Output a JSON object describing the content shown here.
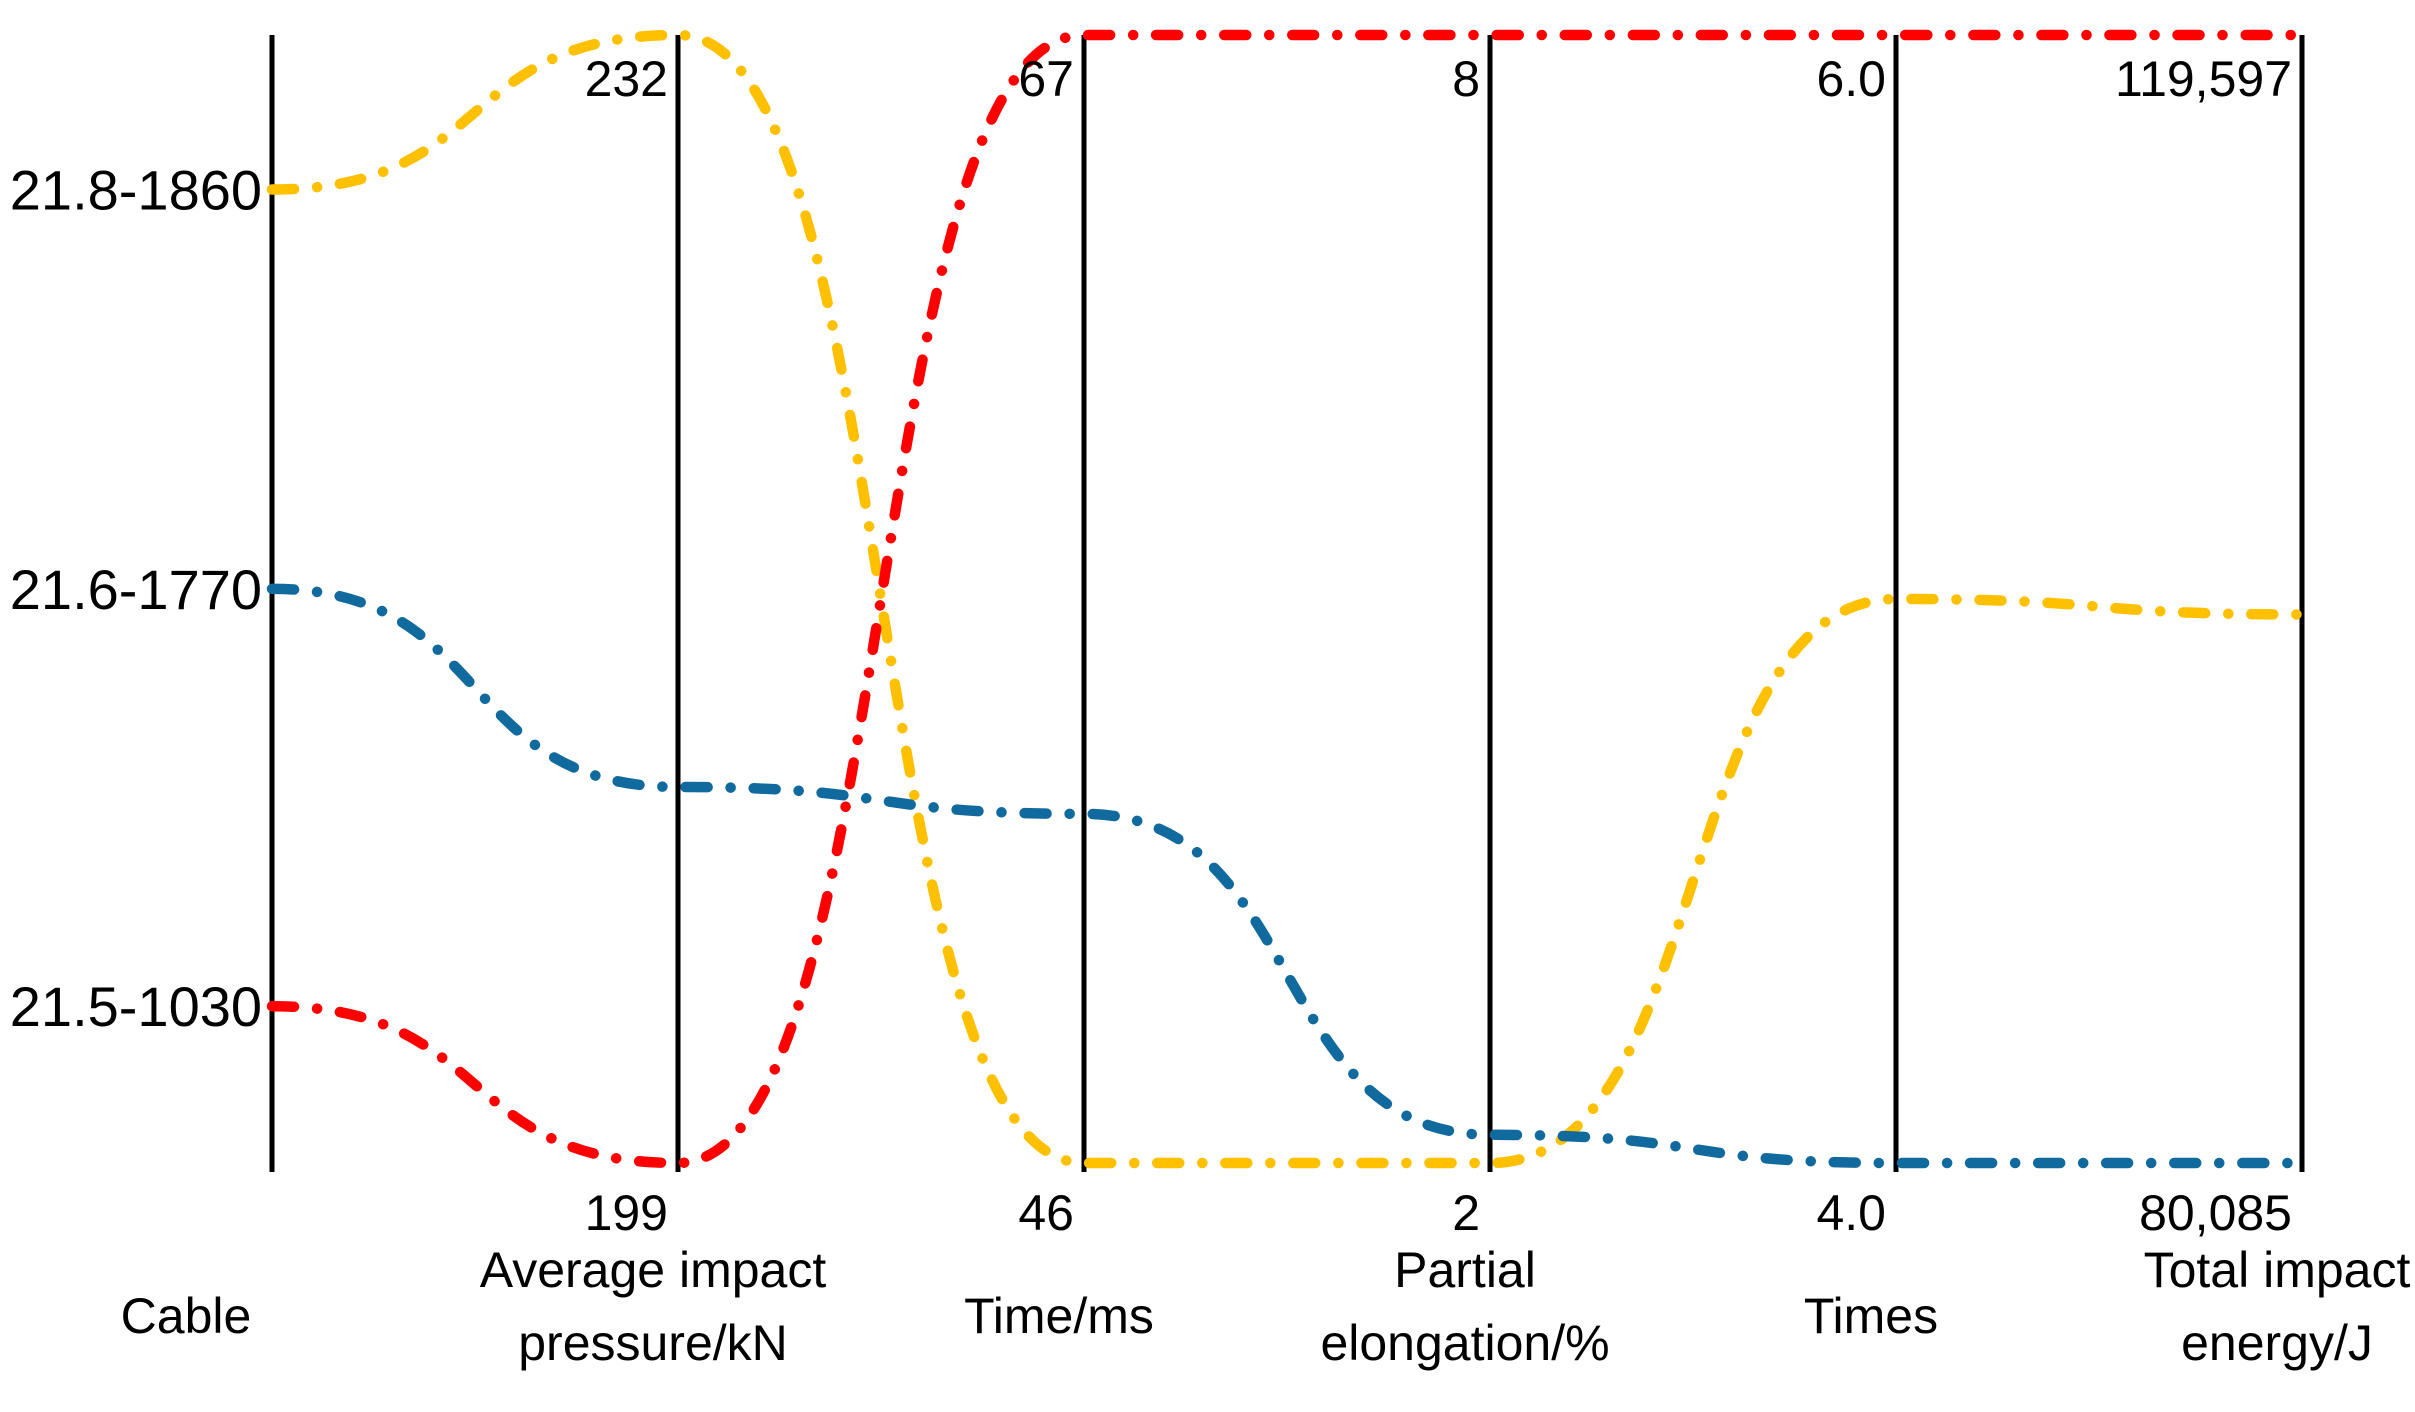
{
  "chart_data": {
    "type": "parallel-coordinates",
    "title": "",
    "line_style": "dash-dot",
    "grid": false,
    "legend_position": "none",
    "background_color": "#ffffff",
    "axis_color": "#000000",
    "axes": [
      {
        "key": "cable",
        "title_lines": [
          "Cable"
        ],
        "top_label": "",
        "bottom_label": "",
        "type": "categorical"
      },
      {
        "key": "pressure",
        "title_lines": [
          "Average impact",
          "pressure/kN"
        ],
        "top_label": "232",
        "bottom_label": "199",
        "max": 232,
        "min": 199
      },
      {
        "key": "time",
        "title_lines": [
          "Time/ms"
        ],
        "top_label": "67",
        "bottom_label": "46",
        "max": 67,
        "min": 46
      },
      {
        "key": "elongation",
        "title_lines": [
          "Partial",
          "elongation/%"
        ],
        "top_label": "8",
        "bottom_label": "2",
        "max": 8,
        "min": 2
      },
      {
        "key": "times",
        "title_lines": [
          "Times"
        ],
        "top_label": "6.0",
        "bottom_label": "4.0",
        "max": 6.0,
        "min": 4.0
      },
      {
        "key": "energy",
        "title_lines": [
          "Total impact",
          "energy/J"
        ],
        "top_label": "119,597",
        "bottom_label": "80,085",
        "max": 119597,
        "min": 80085
      }
    ],
    "series": [
      {
        "name": "21.8-1860",
        "color": "#FFC000",
        "values": {
          "pressure": 232,
          "time": 46,
          "elongation": 2,
          "times": 5.0,
          "energy": 99300
        }
      },
      {
        "name": "21.6-1770",
        "color": "#116A9E",
        "values": {
          "pressure": 210,
          "time": 52.5,
          "elongation": 2.15,
          "times": 4.0,
          "energy": 80085
        }
      },
      {
        "name": "21.5-1030",
        "color": "#FF0000",
        "values": {
          "pressure": 199,
          "time": 67,
          "elongation": 8,
          "times": 6.0,
          "energy": 119597
        }
      }
    ],
    "category_axis_positions": {
      "21.8-1860": 0.137,
      "21.6-1770": 0.491,
      "21.5-1030": 0.861
    }
  }
}
